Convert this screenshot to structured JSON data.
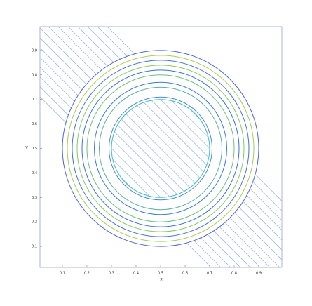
{
  "chart_data": {
    "type": "contour",
    "x_label": "x",
    "y_label": "y",
    "xlim": [
      0,
      1
    ],
    "ylim": [
      0,
      1
    ],
    "xticks": [
      0.1,
      0.2,
      0.3,
      0.4,
      0.5,
      0.6,
      0.7,
      0.8,
      0.9
    ],
    "yticks": [
      0.1,
      0.2,
      0.3,
      0.4,
      0.5,
      0.6,
      0.7,
      0.8,
      0.9
    ],
    "center": [
      0.5,
      0.5
    ],
    "rings": [
      {
        "radius": 0.2,
        "color": "#3fb8c8"
      },
      {
        "radius": 0.21,
        "color": "#4a8ad0"
      },
      {
        "radius": 0.25,
        "color": "#5ab0a0"
      },
      {
        "radius": 0.27,
        "color": "#3a7ad8"
      },
      {
        "radius": 0.3,
        "color": "#6cc080"
      },
      {
        "radius": 0.32,
        "color": "#3a6ee0"
      },
      {
        "radius": 0.34,
        "color": "#88c860"
      },
      {
        "radius": 0.36,
        "color": "#4070e0"
      },
      {
        "radius": 0.38,
        "color": "#a8cc50"
      },
      {
        "radius": 0.4,
        "color": "#4a66e0"
      }
    ],
    "lines": [
      0.72,
      0.76,
      0.8,
      0.84,
      0.88,
      0.92,
      0.96,
      1.0,
      1.04,
      1.08,
      1.12,
      1.16,
      1.2,
      1.24,
      1.28
    ],
    "line_color": "#7aa8d8"
  }
}
